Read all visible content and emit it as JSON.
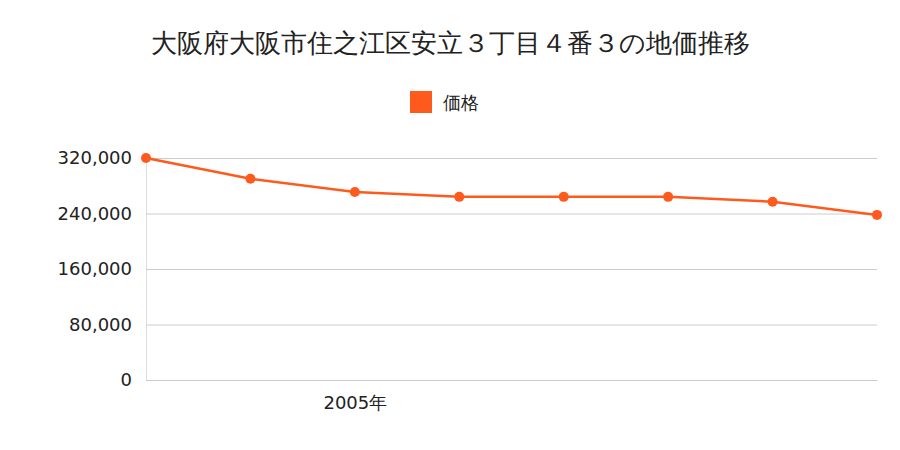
{
  "chart_data": {
    "type": "line",
    "title": "大阪府大阪市住之江区安立３丁目４番３の地価推移",
    "categories": [
      null,
      null,
      "2005年",
      null,
      null,
      null,
      null,
      null
    ],
    "series": [
      {
        "name": "価格",
        "color": "#ff5a1e",
        "values": [
          320000,
          290000,
          271000,
          264000,
          264000,
          264000,
          257000,
          238000
        ]
      }
    ],
    "ylim": [
      0,
      320000
    ],
    "yticks": [
      0,
      {
        "value": 80000,
        "label": "80,000"
      },
      {
        "value": 160000,
        "label": "160,000"
      },
      {
        "value": 240000,
        "label": "240,000"
      },
      {
        "value": 320000,
        "label": "320,000"
      }
    ],
    "grid": true,
    "legend": "top",
    "marker": "circle"
  }
}
